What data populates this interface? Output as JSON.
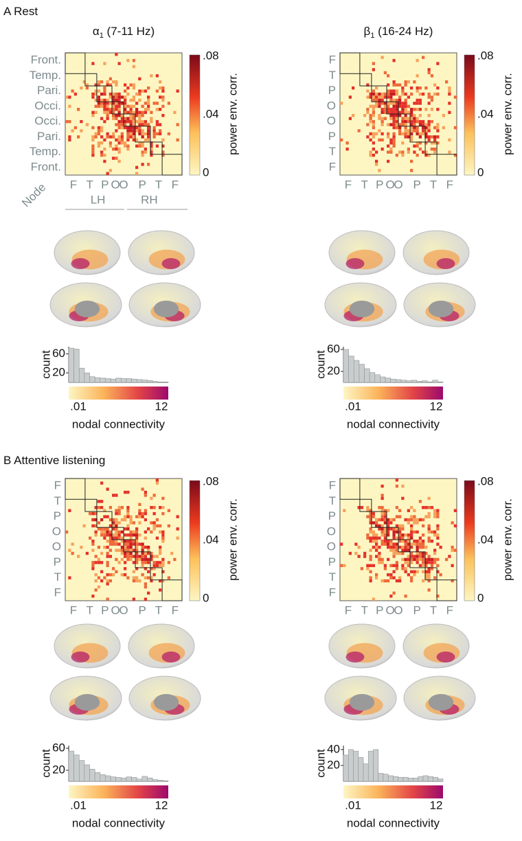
{
  "sections": [
    {
      "label": "A",
      "title": "Rest",
      "panels": [
        {
          "title": {
            "symbol": "α",
            "sub": "1",
            "rest": " (7-11 Hz)"
          },
          "row_labels": [
            "Front.",
            "Temp.",
            "Pari.",
            "Occi.",
            "Occi.",
            "Pari.",
            "Temp.",
            "Front."
          ],
          "col_labels": [
            "F",
            "T",
            "P",
            "O",
            "O",
            "P",
            "T",
            "F"
          ],
          "node_label": "Node",
          "hemispheres": [
            "LH",
            "RH"
          ],
          "colorbar": {
            "ticks": [
              ".08",
              ".04",
              "0"
            ],
            "label": "power env. corr."
          },
          "histogram": {
            "ylabel": "count",
            "ylim": [
              0,
              75
            ],
            "yticks": [
              60,
              20
            ],
            "counts": [
              72,
              70,
              30,
              20,
              12,
              10,
              9,
              8,
              7,
              9,
              8,
              8,
              7,
              6,
              5,
              4,
              2,
              1,
              1
            ],
            "colorbar_ticks": [
              ".01",
              "12"
            ],
            "xlabel": "nodal connectivity"
          }
        },
        {
          "title": {
            "symbol": "β",
            "sub": "1",
            "rest": " (16-24 Hz)"
          },
          "row_labels": [
            "F",
            "T",
            "P",
            "O",
            "O",
            "P",
            "T",
            "F"
          ],
          "col_labels": [
            "F",
            "T",
            "P",
            "O",
            "O",
            "P",
            "T",
            "F"
          ],
          "colorbar": {
            "ticks": [
              ".08",
              ".04",
              "0"
            ],
            "label": "power env. corr."
          },
          "histogram": {
            "ylabel": "count",
            "ylim": [
              0,
              65
            ],
            "yticks": [
              60,
              20
            ],
            "counts": [
              60,
              48,
              40,
              33,
              25,
              18,
              14,
              10,
              8,
              6,
              5,
              4,
              3,
              4,
              2,
              3,
              1,
              4,
              1
            ],
            "colorbar_ticks": [
              ".01",
              "12"
            ],
            "xlabel": "nodal connectivity"
          }
        }
      ]
    },
    {
      "label": "B",
      "title": "Attentive listening",
      "panels": [
        {
          "row_labels": [
            "F",
            "T",
            "P",
            "O",
            "O",
            "P",
            "T",
            "F"
          ],
          "col_labels": [
            "F",
            "T",
            "P",
            "O",
            "O",
            "P",
            "T",
            "F"
          ],
          "colorbar": {
            "ticks": [
              ".08",
              ".04",
              "0"
            ],
            "label": "power env. corr."
          },
          "histogram": {
            "ylabel": "count",
            "ylim": [
              0,
              65
            ],
            "yticks": [
              60,
              20
            ],
            "counts": [
              55,
              48,
              38,
              30,
              22,
              16,
              12,
              10,
              8,
              7,
              6,
              8,
              7,
              4,
              9,
              6,
              3,
              2,
              1
            ],
            "colorbar_ticks": [
              ".01",
              "12"
            ],
            "xlabel": "nodal connectivity"
          }
        },
        {
          "row_labels": [
            "F",
            "T",
            "P",
            "O",
            "O",
            "P",
            "T",
            "F"
          ],
          "col_labels": [
            "F",
            "T",
            "P",
            "O",
            "O",
            "P",
            "T",
            "F"
          ],
          "colorbar": {
            "ticks": [
              ".08",
              ".04",
              "0"
            ],
            "label": "power env. corr."
          },
          "histogram": {
            "ylabel": "count",
            "ylim": [
              0,
              45
            ],
            "yticks": [
              40,
              20
            ],
            "counts": [
              33,
              40,
              38,
              30,
              22,
              38,
              40,
              10,
              9,
              7,
              6,
              5,
              5,
              4,
              4,
              6,
              7,
              6,
              5,
              3
            ],
            "colorbar_ticks": [
              ".01",
              "12"
            ],
            "xlabel": "nodal connectivity"
          }
        }
      ]
    }
  ]
}
